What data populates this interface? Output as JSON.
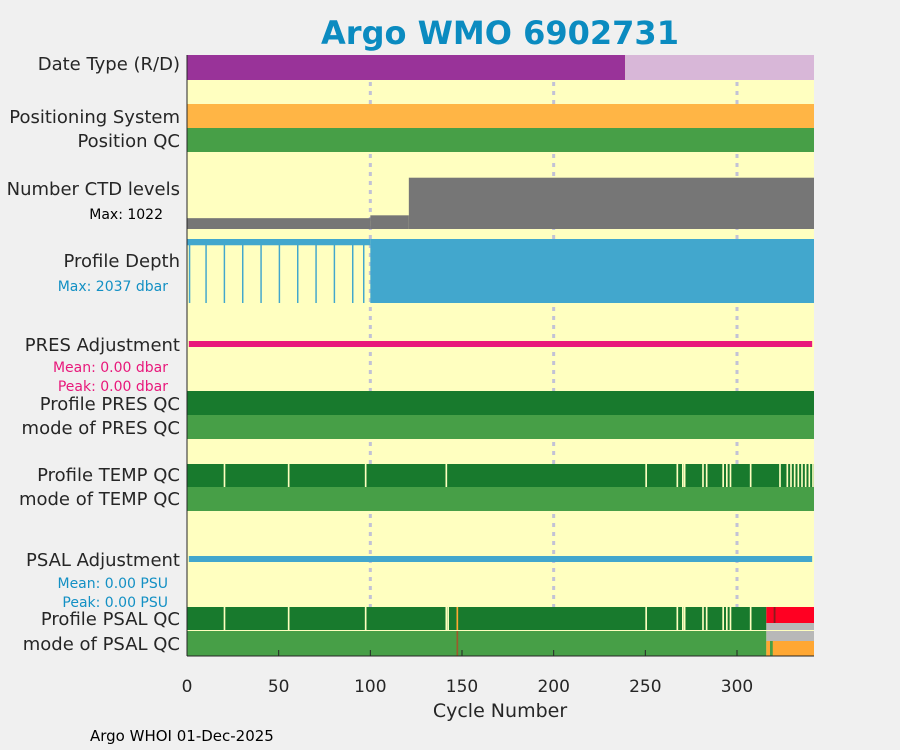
{
  "chart_data": {
    "type": "argo_float_timeline",
    "title": "Argo WMO 6902731",
    "xlabel": "Cycle Number",
    "xlim": [
      0,
      342
    ],
    "xticks": [
      0,
      50,
      100,
      150,
      200,
      250,
      300
    ],
    "xtick_labels": [
      "0",
      "50",
      "100",
      "150",
      "200",
      "250",
      "300"
    ],
    "footer": "Argo WHOI 01-Dec-2025",
    "gridlines_at": [
      100,
      200,
      300
    ],
    "rows": {
      "date_type": {
        "label": "Date Type (R/D)",
        "segments": [
          {
            "from": 0,
            "to": 239,
            "state": "D",
            "color": "#993399"
          },
          {
            "from": 239,
            "to": 342,
            "state": "R",
            "color": "#d8b7d8"
          }
        ]
      },
      "positioning": {
        "label": "Positioning System",
        "segments": [
          {
            "from": 0,
            "to": 342,
            "color": "#ffb545"
          }
        ]
      },
      "position_qc": {
        "label": "Position QC",
        "segments": [
          {
            "from": 0,
            "to": 342,
            "color": "#479f47"
          }
        ]
      },
      "ctd_levels": {
        "label": "Number CTD levels",
        "sublabel": "Max: 1022",
        "color": "#767676",
        "max": 1022,
        "steps": [
          {
            "from": 0,
            "to": 100,
            "fraction": 0.19
          },
          {
            "from": 100,
            "to": 121,
            "fraction": 0.24
          },
          {
            "from": 121,
            "to": 342,
            "fraction": 0.9
          }
        ]
      },
      "profile_depth": {
        "label": "Profile Depth",
        "sublabel": "Max: 2037 dbar",
        "color": "#42a7cd",
        "max_dbar": 2037,
        "early_partial_fraction": 0.72,
        "deep_profile_cycles": [
          1,
          10,
          20,
          30,
          40,
          50,
          60,
          70,
          80,
          90,
          96
        ],
        "full_from": 100,
        "full_to": 342
      },
      "pres_adjustment": {
        "label": "PRES Adjustment",
        "mean": "Mean: 0.00 dbar",
        "peak": "Peak: 0.00 dbar",
        "color": "#e8187b"
      },
      "profile_pres_qc": {
        "label": "Profile PRES QC",
        "color": "#187a2d"
      },
      "mode_pres_qc": {
        "label": "mode of PRES QC",
        "color": "#479f47"
      },
      "profile_temp_qc": {
        "label": "Profile TEMP QC",
        "color": "#187a2d",
        "gap_cycles": [
          20,
          55,
          97,
          141,
          250,
          267,
          270,
          271,
          281,
          283,
          292,
          294,
          296,
          307,
          323,
          327,
          329,
          331,
          333,
          335,
          337,
          339,
          341
        ]
      },
      "mode_temp_qc": {
        "label": "mode of TEMP QC",
        "color": "#479f47"
      },
      "psal_adjustment": {
        "label": "PSAL Adjustment",
        "mean": "Mean: 0.00 PSU",
        "peak": "Peak: 0.00 PSU",
        "color": "#42a7cd"
      },
      "profile_psal_qc": {
        "label": "Profile PSAL QC",
        "color": "#187a2d",
        "gap_cycles": [
          20,
          55,
          97,
          141,
          142,
          250,
          267,
          270,
          271,
          281,
          283,
          292,
          294,
          296,
          307
        ],
        "orange_cycle": 147,
        "tail": {
          "from": 316,
          "to": 342
        }
      },
      "mode_psal_qc": {
        "label": "mode of PSAL QC",
        "color": "#479f47",
        "brown_cycle": 147,
        "grey_from": 316,
        "grey_to": 342
      }
    },
    "colors": {
      "background": "#ffffc0",
      "good": "#187a2d",
      "mode_good": "#479f47",
      "bad": "#ff0022",
      "probably_bad": "#ffa733",
      "missing": "#b8b8b8",
      "title": "#0b8bc0",
      "grid": "#c2c2d6"
    }
  }
}
